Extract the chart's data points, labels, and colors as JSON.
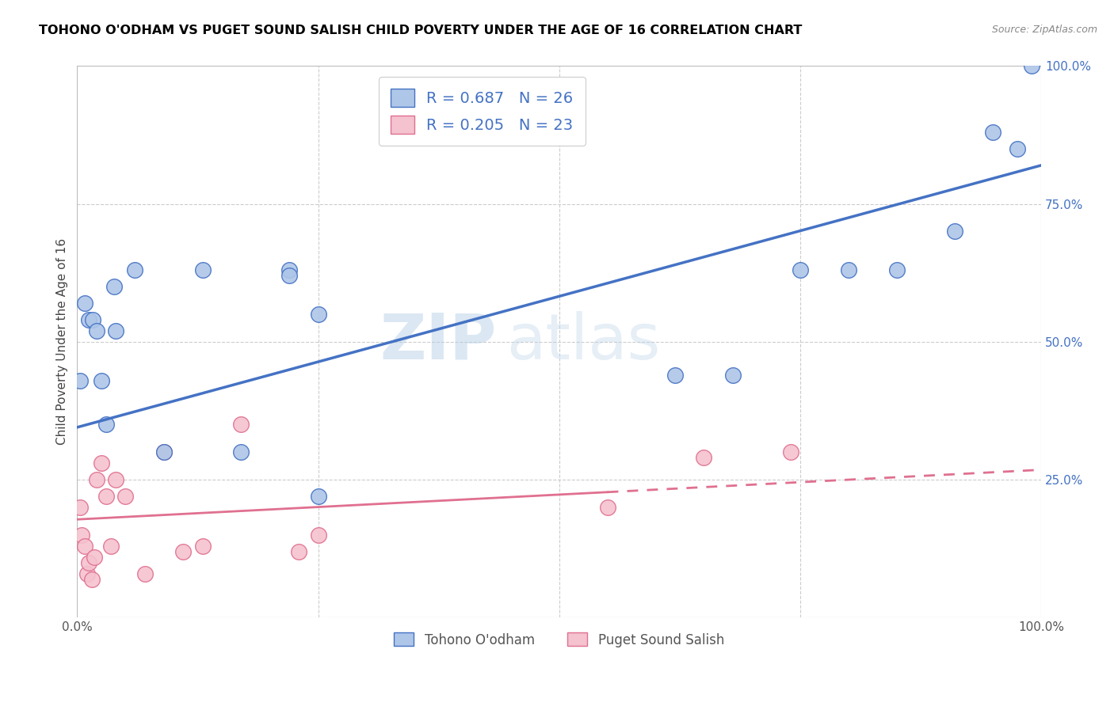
{
  "title": "TOHONO O'ODHAM VS PUGET SOUND SALISH CHILD POVERTY UNDER THE AGE OF 16 CORRELATION CHART",
  "source": "Source: ZipAtlas.com",
  "ylabel": "Child Poverty Under the Age of 16",
  "xlim": [
    0,
    1.0
  ],
  "ylim": [
    0,
    1.0
  ],
  "blue_color": "#aec6e8",
  "blue_line_color": "#4472c4",
  "pink_color": "#f5c2cf",
  "pink_line_color": "#e07090",
  "blue_R": 0.687,
  "blue_N": 26,
  "pink_R": 0.205,
  "pink_N": 23,
  "legend_R_color": "#4472c4",
  "legend_label1": "Tohono O'odham",
  "legend_label2": "Puget Sound Salish",
  "watermark1": "ZIP",
  "watermark2": "atlas",
  "blue_line_start_y": 0.345,
  "blue_line_end_y": 0.82,
  "pink_line_start_y": 0.178,
  "pink_line_end_y": 0.268,
  "blue_scatter_x": [
    0.003,
    0.008,
    0.012,
    0.016,
    0.02,
    0.025,
    0.03,
    0.038,
    0.04,
    0.06,
    0.09,
    0.13,
    0.17,
    0.22,
    0.22,
    0.25,
    0.25,
    0.62,
    0.68,
    0.75,
    0.8,
    0.85,
    0.91,
    0.95,
    0.975,
    0.99
  ],
  "blue_scatter_y": [
    0.43,
    0.57,
    0.54,
    0.54,
    0.52,
    0.43,
    0.35,
    0.6,
    0.52,
    0.63,
    0.3,
    0.63,
    0.3,
    0.63,
    0.62,
    0.55,
    0.22,
    0.44,
    0.44,
    0.63,
    0.63,
    0.63,
    0.7,
    0.88,
    0.85,
    1.0
  ],
  "pink_scatter_x": [
    0.003,
    0.005,
    0.008,
    0.01,
    0.012,
    0.015,
    0.018,
    0.02,
    0.025,
    0.03,
    0.035,
    0.04,
    0.05,
    0.07,
    0.09,
    0.11,
    0.13,
    0.17,
    0.23,
    0.25,
    0.55,
    0.65,
    0.74
  ],
  "pink_scatter_y": [
    0.2,
    0.15,
    0.13,
    0.08,
    0.1,
    0.07,
    0.11,
    0.25,
    0.28,
    0.22,
    0.13,
    0.25,
    0.22,
    0.08,
    0.3,
    0.12,
    0.13,
    0.35,
    0.12,
    0.15,
    0.2,
    0.29,
    0.3
  ]
}
